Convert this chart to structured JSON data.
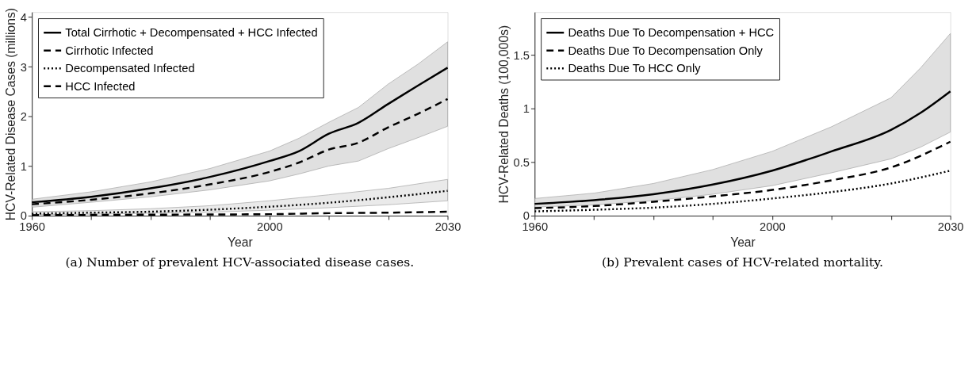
{
  "chart_data": [
    {
      "type": "line",
      "xlabel": "Year",
      "ylabel": "HCV-Related Disease Cases (millions)",
      "annotations": [
        "(a) Number of prevalent HCV-associated disease cases."
      ],
      "xlim": [
        1960,
        2030
      ],
      "ylim": [
        0,
        4.1
      ],
      "xticks": [
        1960,
        {
          "value": 1970,
          "label": null
        },
        {
          "value": 1980,
          "label": null
        },
        {
          "value": 1990,
          "label": null
        },
        2000,
        {
          "value": 2010,
          "label": null
        },
        {
          "value": 2020,
          "label": null
        },
        2030
      ],
      "yticks": [
        0,
        1,
        2,
        3,
        4
      ],
      "legend": "top left",
      "grid": false,
      "marker": "none",
      "series": [
        {
          "name": "Total Cirrhotic + Decompensated + HCC Infected",
          "color": "#000000",
          "line_style": "solid",
          "x": [
            1960,
            1970,
            1980,
            1990,
            2000,
            2005,
            2010,
            2015,
            2020,
            2025,
            2030
          ],
          "values": [
            0.27,
            0.38,
            0.55,
            0.78,
            1.1,
            1.3,
            1.65,
            1.87,
            2.25,
            2.62,
            2.98
          ],
          "lower": [
            0.17,
            0.27,
            0.38,
            0.52,
            0.7,
            0.84,
            1.0,
            1.1,
            1.35,
            1.57,
            1.8
          ],
          "upper": [
            0.33,
            0.48,
            0.68,
            0.95,
            1.3,
            1.56,
            1.88,
            2.18,
            2.65,
            3.05,
            3.5
          ]
        },
        {
          "name": "Cirrhotic Infected",
          "color": "#000000",
          "line_style": "dashed",
          "x": [
            1960,
            1970,
            1980,
            1990,
            2000,
            2005,
            2010,
            2015,
            2020,
            2025,
            2030
          ],
          "values": [
            0.23,
            0.32,
            0.45,
            0.63,
            0.88,
            1.07,
            1.33,
            1.47,
            1.78,
            2.05,
            2.35
          ]
        },
        {
          "name": "Decompensated Infected",
          "color": "#000000",
          "line_style": "dotted",
          "x": [
            1960,
            1970,
            1980,
            1990,
            2000,
            2010,
            2020,
            2030
          ],
          "values": [
            0.04,
            0.06,
            0.08,
            0.12,
            0.18,
            0.26,
            0.37,
            0.5
          ],
          "lower": [
            0.02,
            0.03,
            0.05,
            0.07,
            0.11,
            0.16,
            0.22,
            0.3
          ],
          "upper": [
            0.08,
            0.1,
            0.14,
            0.2,
            0.3,
            0.42,
            0.55,
            0.73
          ]
        },
        {
          "name": "HCC Infected",
          "color": "#000000",
          "line_style": "dashed",
          "x": [
            1960,
            1980,
            2000,
            2010,
            2020,
            2030
          ],
          "values": [
            0.01,
            0.02,
            0.03,
            0.05,
            0.06,
            0.08
          ]
        }
      ]
    },
    {
      "type": "line",
      "xlabel": "Year",
      "ylabel": "HCV-Related Deaths (100,000s)",
      "annotations": [
        "(b) Prevalent cases of HCV-related mortality."
      ],
      "xlim": [
        1960,
        2030
      ],
      "ylim": [
        0,
        1.9
      ],
      "xticks": [
        1960,
        {
          "value": 1970,
          "label": null
        },
        {
          "value": 1980,
          "label": null
        },
        {
          "value": 1990,
          "label": null
        },
        2000,
        {
          "value": 2010,
          "label": null
        },
        {
          "value": 2020,
          "label": null
        },
        2030
      ],
      "yticks": [
        0,
        0.5,
        1,
        1.5
      ],
      "legend": "top left",
      "grid": false,
      "marker": "none",
      "series": [
        {
          "name": "Deaths Due To Decompensation + HCC",
          "color": "#000000",
          "line_style": "solid",
          "x": [
            1960,
            1970,
            1980,
            1990,
            2000,
            2010,
            2020,
            2025,
            2030
          ],
          "values": [
            0.11,
            0.145,
            0.2,
            0.29,
            0.42,
            0.6,
            0.8,
            0.96,
            1.16
          ],
          "lower": [
            0.08,
            0.1,
            0.14,
            0.2,
            0.28,
            0.4,
            0.53,
            0.64,
            0.78
          ],
          "upper": [
            0.16,
            0.21,
            0.3,
            0.43,
            0.6,
            0.83,
            1.1,
            1.38,
            1.7
          ]
        },
        {
          "name": "Deaths Due To Decompensation Only",
          "color": "#000000",
          "line_style": "dashed",
          "x": [
            1960,
            1970,
            1980,
            1990,
            2000,
            2010,
            2020,
            2030
          ],
          "values": [
            0.07,
            0.09,
            0.13,
            0.18,
            0.24,
            0.33,
            0.45,
            0.69
          ]
        },
        {
          "name": "Deaths Due To HCC Only",
          "color": "#000000",
          "line_style": "dotted",
          "x": [
            1960,
            1970,
            1980,
            1990,
            2000,
            2010,
            2020,
            2030
          ],
          "values": [
            0.04,
            0.055,
            0.075,
            0.11,
            0.16,
            0.22,
            0.3,
            0.42
          ]
        }
      ]
    }
  ]
}
